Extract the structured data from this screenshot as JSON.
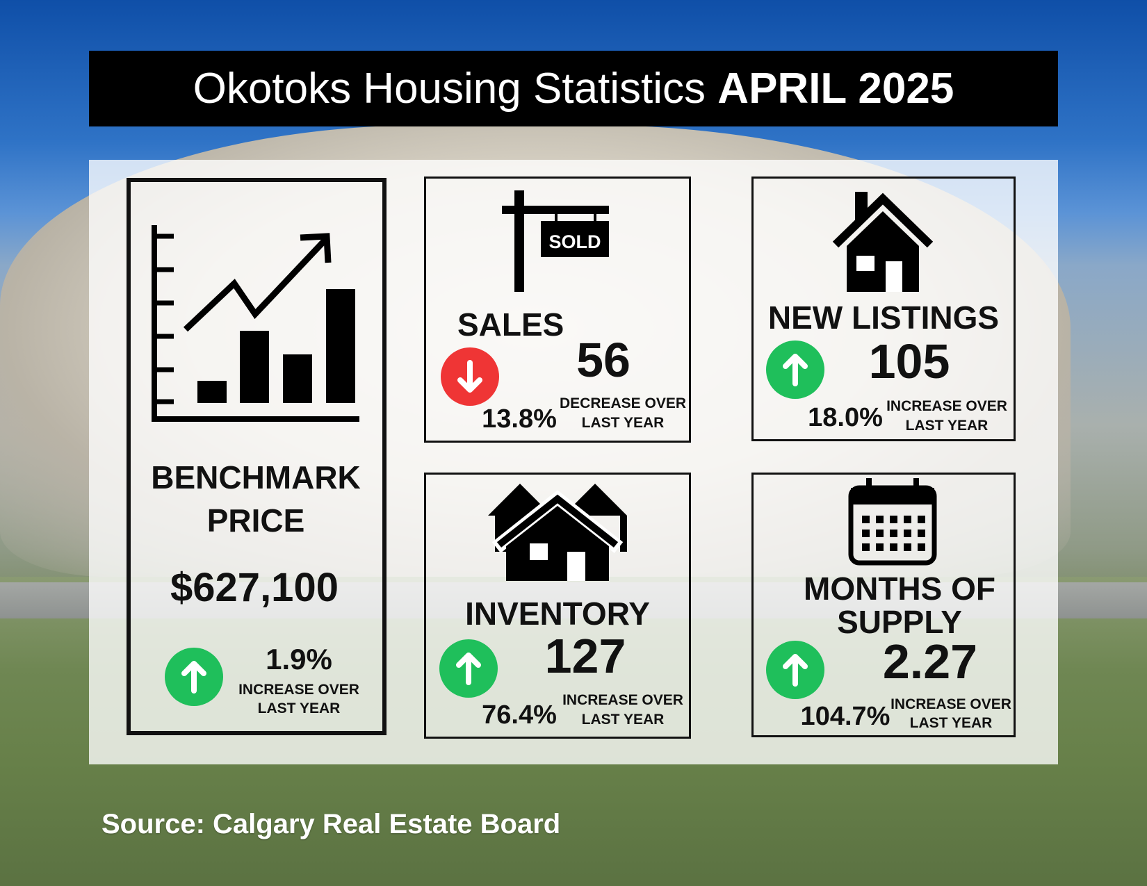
{
  "title": {
    "main": "Okotoks Housing Statistics ",
    "bold": "APRIL 2025"
  },
  "benchmark": {
    "label_line1": "BENCHMARK",
    "label_line2": "PRICE",
    "value": "$627,100",
    "change_pct": "1.9%",
    "change_line1": "INCREASE OVER",
    "change_line2": "LAST YEAR",
    "direction": "up",
    "icon": "bar-chart-trend-icon"
  },
  "sales": {
    "label": "SALES",
    "value": "56",
    "change_pct": "13.8%",
    "change_line1": "DECREASE OVER",
    "change_line2": "LAST YEAR",
    "direction": "down",
    "icon": "sold-sign-icon",
    "sign_text": "SOLD"
  },
  "new_listings": {
    "label": "NEW LISTINGS",
    "value": "105",
    "change_pct": "18.0%",
    "change_line1": "INCREASE OVER",
    "change_line2": "LAST YEAR",
    "direction": "up",
    "icon": "house-icon"
  },
  "inventory": {
    "label": "INVENTORY",
    "value": "127",
    "change_pct": "76.4%",
    "change_line1": "INCREASE OVER",
    "change_line2": "LAST YEAR",
    "direction": "up",
    "icon": "houses-icon"
  },
  "months_of_supply": {
    "label_line1": "MONTHS OF",
    "label_line2": "SUPPLY",
    "value": "2.27",
    "change_pct": "104.7%",
    "change_line1": "INCREASE OVER",
    "change_line2": "LAST YEAR",
    "direction": "up",
    "icon": "calendar-icon"
  },
  "source": "Source: Calgary Real Estate Board",
  "colors": {
    "up": "#1fbf5b",
    "down": "#ef3535",
    "title_bg": "#000000"
  }
}
